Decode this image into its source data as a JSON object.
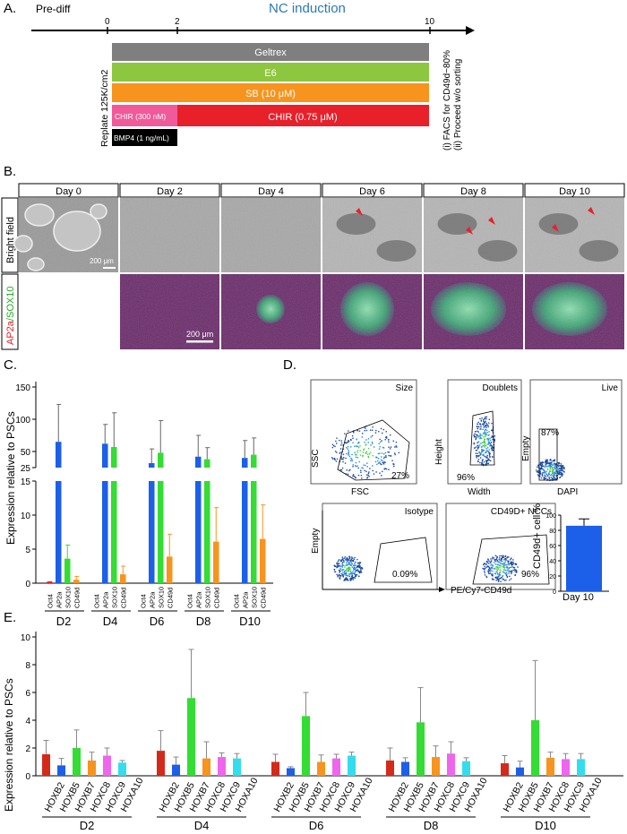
{
  "panelA": {
    "letter": "A.",
    "prediff": "Pre-diff",
    "nc_induction": "NC induction",
    "tick0": "0",
    "tick2": "2",
    "tick10": "10",
    "replate": "Replate 125K/cm2",
    "bars": {
      "geltrex": "Geltrex",
      "e6": "E6",
      "sb": "SB (10 μM)",
      "chir_low": "CHIR (300 nM)",
      "chir_high": "CHIR (0.75 μM)",
      "bmp4": "BMP4 (1 ng/mL)"
    },
    "note1": "(i) FACS for CD49d~80%",
    "note2": "(ii) Proceed w/o sorting",
    "colors": {
      "geltrex": "#7f7f7f",
      "e6": "#8dc63f",
      "sb": "#f7941d",
      "chir_low": "#f15a9a",
      "chir_high": "#e8202a",
      "bmp4": "#000000"
    }
  },
  "panelB": {
    "letter": "B.",
    "days": [
      "Day 0",
      "Day 2",
      "Day 4",
      "Day 6",
      "Day 8",
      "Day 10"
    ],
    "row1": "Bright field",
    "row2a": "AP2a",
    "row2b": "/SOX10",
    "scale1": "200 μm",
    "scale2": "200 μm"
  },
  "panelC": {
    "letter": "C.",
    "ylabel": "Expression relative to PSCs",
    "yticks_top": [
      "150",
      "100",
      "50",
      "25"
    ],
    "yticks_bottom": [
      "15",
      "10",
      "5",
      "0"
    ],
    "genes": [
      "Oct4",
      "AP2a",
      "SOX10",
      "CD49d"
    ],
    "groups": [
      "D2",
      "D4",
      "D6",
      "D8",
      "D10"
    ],
    "chart_data": {
      "type": "bar",
      "categories": [
        "D2",
        "D4",
        "D6",
        "D8",
        "D10"
      ],
      "series": [
        {
          "name": "Oct4",
          "values": [
            0.2,
            0,
            0,
            0,
            0
          ],
          "err": [
            0,
            0,
            0,
            0,
            0
          ]
        },
        {
          "name": "AP2a",
          "values": [
            65,
            62,
            32,
            42,
            40
          ],
          "err": [
            58,
            30,
            22,
            33,
            27
          ]
        },
        {
          "name": "SOX10",
          "values": [
            3.6,
            57,
            48,
            38,
            45
          ],
          "err": [
            2,
            53,
            50,
            18,
            26
          ]
        },
        {
          "name": "CD49d",
          "values": [
            0.5,
            1.3,
            3.9,
            6.1,
            6.5
          ],
          "err": [
            0.5,
            1.2,
            3.3,
            5,
            5
          ]
        }
      ],
      "colors": [
        "#e8202a",
        "#1c5fe8",
        "#33dd33",
        "#f7941d"
      ]
    }
  },
  "panelD": {
    "letter": "D.",
    "plot1": {
      "title": "Size",
      "x": "FSC",
      "y": "SSC",
      "pct": "27%"
    },
    "plot2": {
      "title": "Doublets",
      "x": "Width",
      "y": "Height",
      "pct": "96%"
    },
    "plot3": {
      "title": "Live",
      "x": "DAPI",
      "y": "Empty",
      "pct": "87%"
    },
    "plot4": {
      "title": "Isotype",
      "pct": "0.09%"
    },
    "plot5": {
      "title": "CD49D+ NCCs",
      "pct": "96%"
    },
    "yaxis": "Empty",
    "xaxis": "PE/Cy7-CD49d",
    "bar": {
      "ylabel": "CD49d+ cell %",
      "xlabel": "Day 10",
      "yticks": [
        "100",
        "80",
        "60",
        "40",
        "20",
        "0"
      ],
      "chart_data": {
        "type": "bar",
        "categories": [
          "Day 10"
        ],
        "values": [
          86
        ],
        "err": [
          9
        ],
        "ylim": [
          0,
          100
        ]
      }
    }
  },
  "panelE": {
    "letter": "E.",
    "ylabel": "Expression relative to PSCs",
    "yticks": [
      "10",
      "8",
      "6",
      "4",
      "2",
      "0"
    ],
    "genes": [
      "HOXB2",
      "HOXB5",
      "HOXB7",
      "HOXC8",
      "HOXC9",
      "HOXA10"
    ],
    "groups": [
      "D2",
      "D4",
      "D6",
      "D8",
      "D10"
    ],
    "chart_data": {
      "type": "bar",
      "categories": [
        "D2",
        "D4",
        "D6",
        "D8",
        "D10"
      ],
      "ylim": [
        0,
        10
      ],
      "series": [
        {
          "name": "HOXB2",
          "values": [
            1.55,
            1.8,
            1.0,
            1.1,
            0.9
          ],
          "err": [
            1.0,
            1.45,
            0.55,
            0.9,
            0.55
          ]
        },
        {
          "name": "HOXB5",
          "values": [
            0.75,
            0.8,
            0.55,
            1.0,
            0.6
          ],
          "err": [
            0.5,
            0.55,
            0.1,
            0.3,
            0.45
          ]
        },
        {
          "name": "HOXB7",
          "values": [
            2.0,
            5.6,
            4.3,
            3.85,
            4.0
          ],
          "err": [
            1.3,
            3.5,
            1.7,
            2.5,
            4.3
          ]
        },
        {
          "name": "HOXC8",
          "values": [
            1.1,
            1.25,
            1.0,
            1.35,
            1.3
          ],
          "err": [
            0.6,
            1.2,
            0.5,
            0.8,
            0.4
          ]
        },
        {
          "name": "HOXC9",
          "values": [
            1.45,
            1.35,
            1.25,
            1.6,
            1.2
          ],
          "err": [
            0.55,
            0.3,
            0.3,
            0.85,
            0.4
          ]
        },
        {
          "name": "HOXA10",
          "values": [
            0.95,
            1.25,
            1.45,
            1.05,
            1.2
          ],
          "err": [
            0.15,
            0.35,
            0.25,
            0.25,
            0.4
          ]
        }
      ],
      "colors": [
        "#d42a1a",
        "#1c5fe8",
        "#33dd33",
        "#f7941d",
        "#ee66ee",
        "#33ddee"
      ]
    }
  }
}
